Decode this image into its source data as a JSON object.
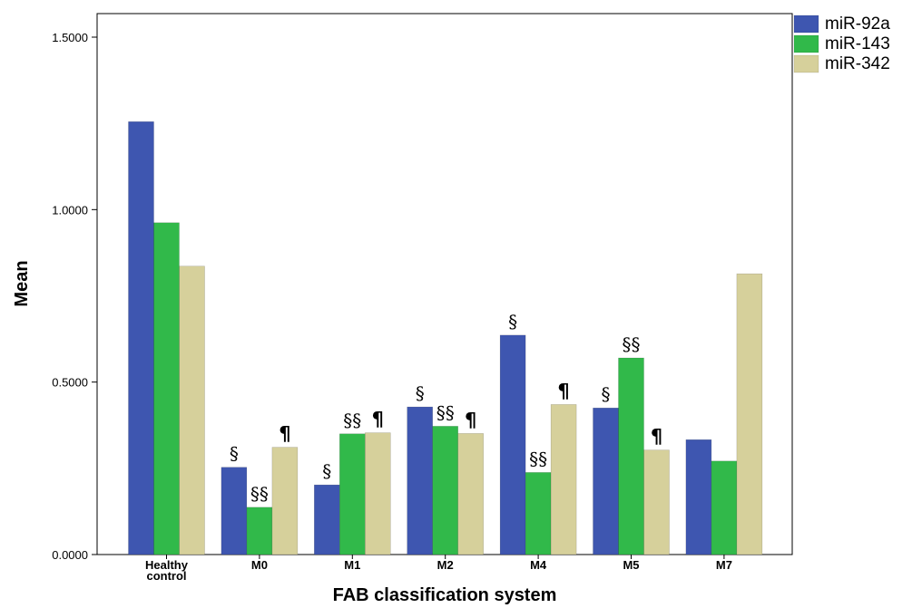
{
  "chart_data": {
    "type": "bar",
    "title": "",
    "xlabel": "FAB classification system",
    "ylabel": "Mean",
    "ylim": [
      0,
      1.5
    ],
    "yticks": [
      "0.0000",
      "0.5000",
      "1.0000",
      "1.5000"
    ],
    "grid": false,
    "legend_position": "top-right",
    "categories": [
      [
        "Healthy",
        "control"
      ],
      [
        "M0"
      ],
      [
        "M1"
      ],
      [
        "M2"
      ],
      [
        "M4"
      ],
      [
        "M5"
      ],
      [
        "M7"
      ]
    ],
    "series": [
      {
        "name": "miR-92a",
        "color": "#3e56b0",
        "values": [
          1.255,
          0.253,
          0.202,
          0.428,
          0.636,
          0.425,
          0.333
        ],
        "annotations": [
          "",
          "§",
          "§",
          "§",
          "§",
          "§",
          ""
        ]
      },
      {
        "name": "miR-143",
        "color": "#31b94a",
        "values": [
          0.962,
          0.137,
          0.35,
          0.372,
          0.238,
          0.57,
          0.271
        ],
        "annotations": [
          "",
          "§§",
          "§§",
          "§§",
          "§§",
          "§§",
          ""
        ]
      },
      {
        "name": "miR-342",
        "color": "#d6d09b",
        "values": [
          0.836,
          0.311,
          0.353,
          0.351,
          0.435,
          0.303,
          0.814
        ],
        "annotations": [
          "",
          "¶",
          "¶",
          "¶",
          "¶",
          "¶",
          ""
        ]
      }
    ]
  }
}
